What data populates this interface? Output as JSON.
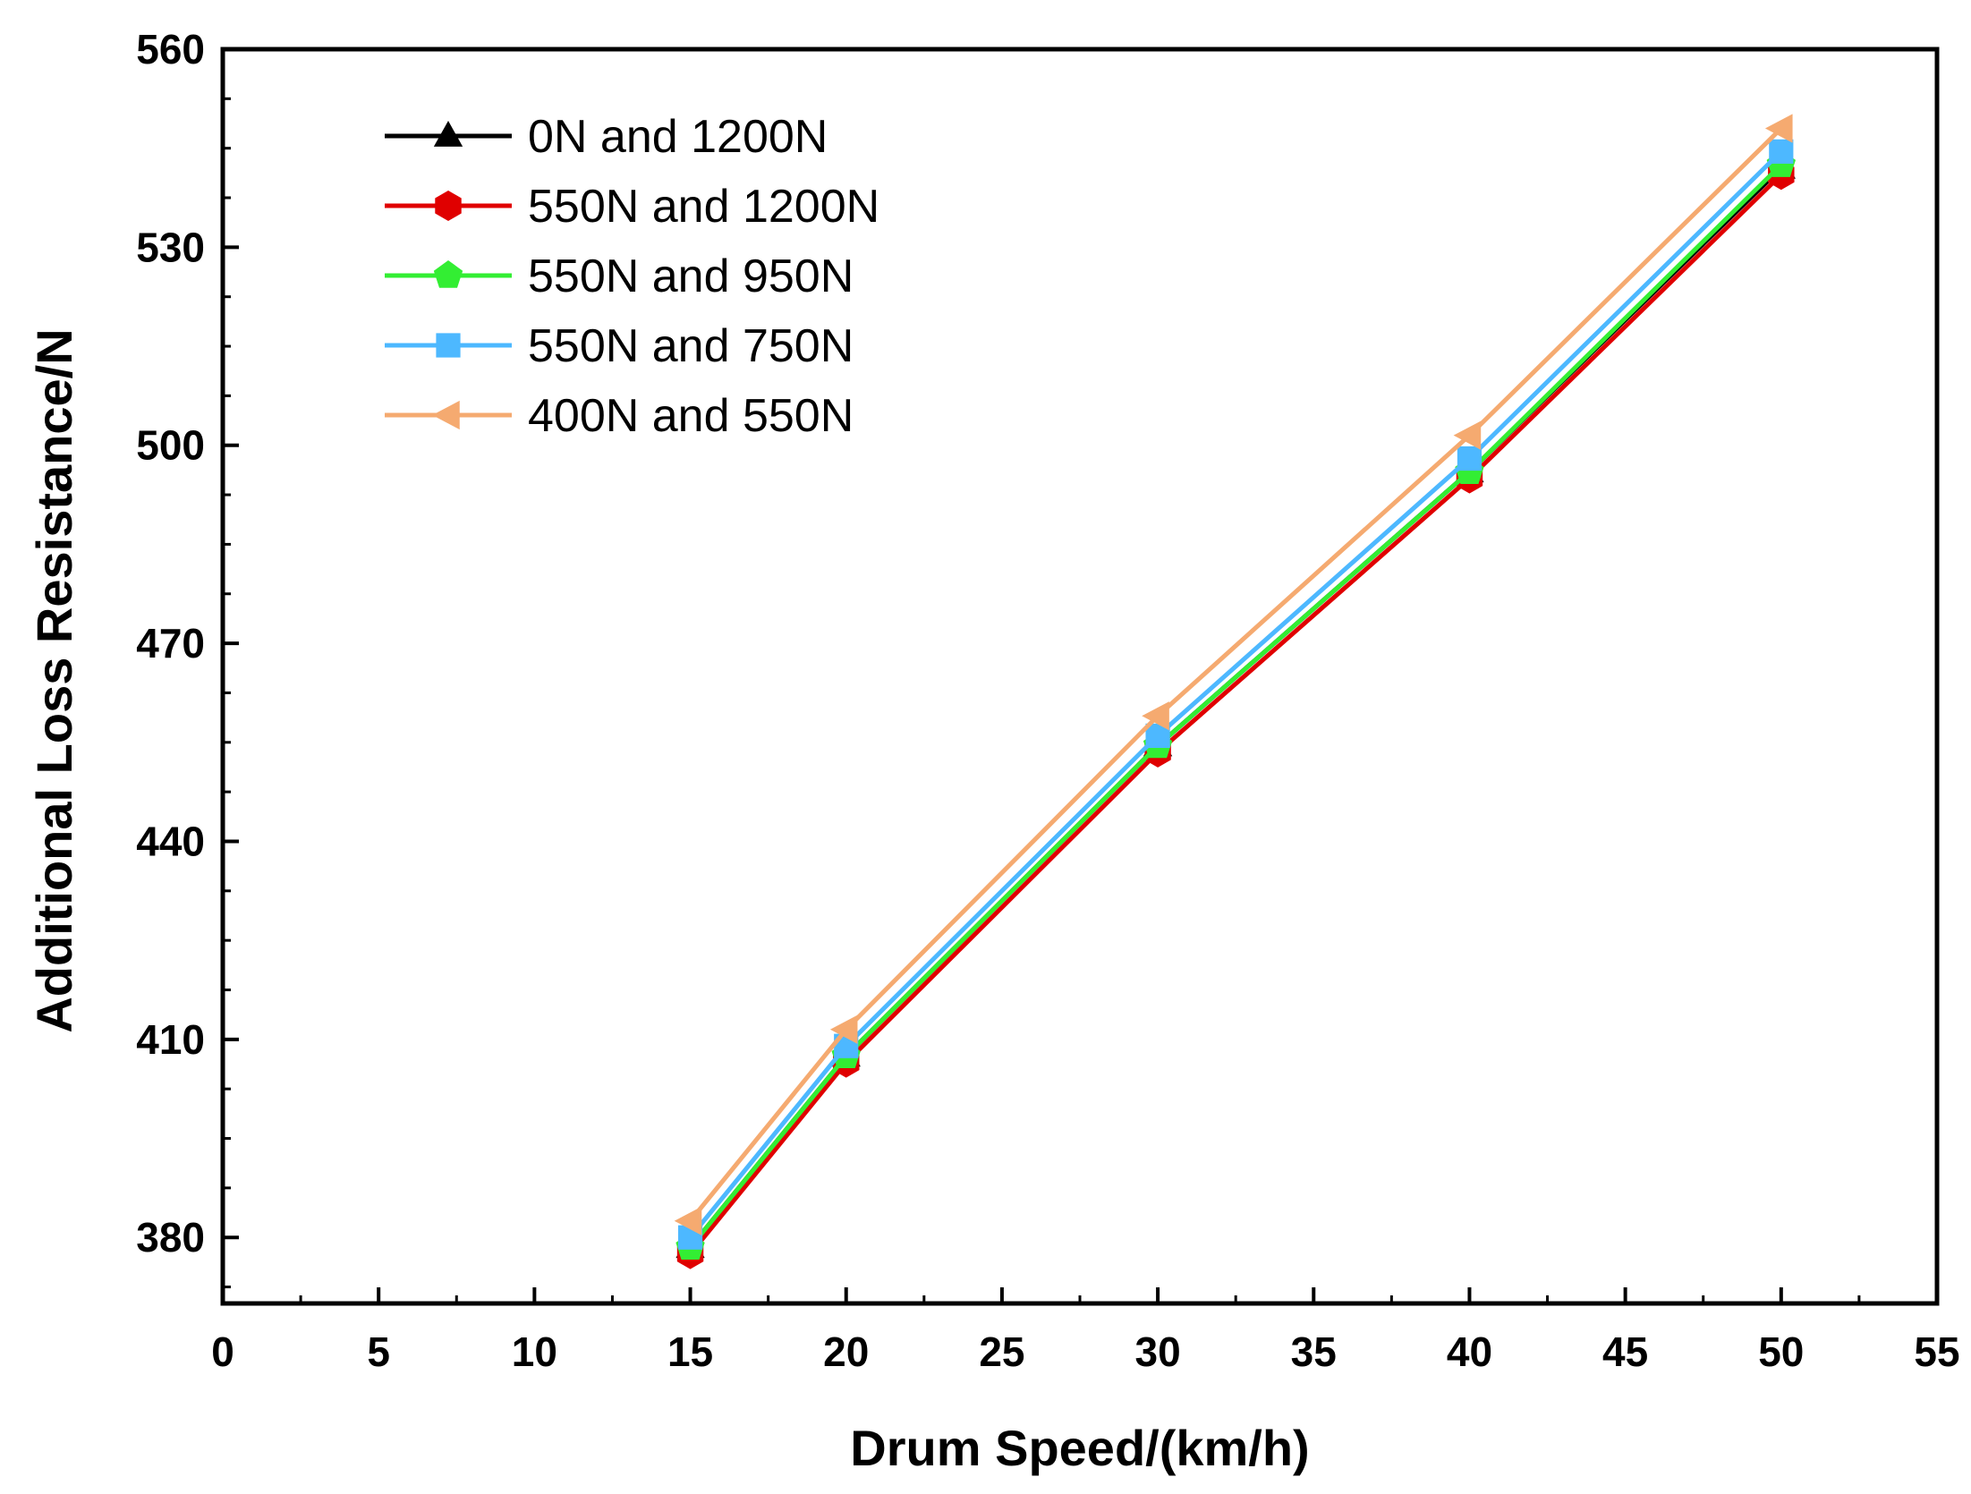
{
  "chart_data": {
    "type": "line",
    "title": "",
    "xlabel": "Drum Speed/(km/h)",
    "ylabel": "Additional Loss Resistance/N",
    "xlim": [
      0,
      55
    ],
    "ylim": [
      370,
      560
    ],
    "xticks": [
      0,
      5,
      10,
      15,
      20,
      25,
      30,
      35,
      40,
      45,
      50,
      55
    ],
    "yticks": [
      380,
      410,
      440,
      470,
      500,
      530,
      560
    ],
    "grid": false,
    "legend_position": "top-left",
    "x": [
      15,
      20,
      30,
      40,
      50
    ],
    "series": [
      {
        "name": "0N and 1200N",
        "color": "#000000",
        "marker": "triangle-up",
        "values": [
          378.5,
          407.5,
          454.5,
          496.0,
          542.0
        ]
      },
      {
        "name": "550N and 1200N",
        "color": "#e00000",
        "marker": "hexagon",
        "values": [
          377.5,
          406.5,
          453.5,
          495.0,
          541.0
        ]
      },
      {
        "name": "550N and 950N",
        "color": "#33ee33",
        "marker": "pentagon",
        "values": [
          378.5,
          407.5,
          454.5,
          496.0,
          542.5
        ]
      },
      {
        "name": "550N and 750N",
        "color": "#4db8ff",
        "marker": "square",
        "values": [
          380.0,
          409.0,
          456.0,
          498.0,
          544.5
        ]
      },
      {
        "name": "400N and 550N",
        "color": "#f5aa70",
        "marker": "triangle-left",
        "values": [
          382.5,
          411.5,
          459.0,
          501.5,
          548.0
        ]
      }
    ]
  }
}
